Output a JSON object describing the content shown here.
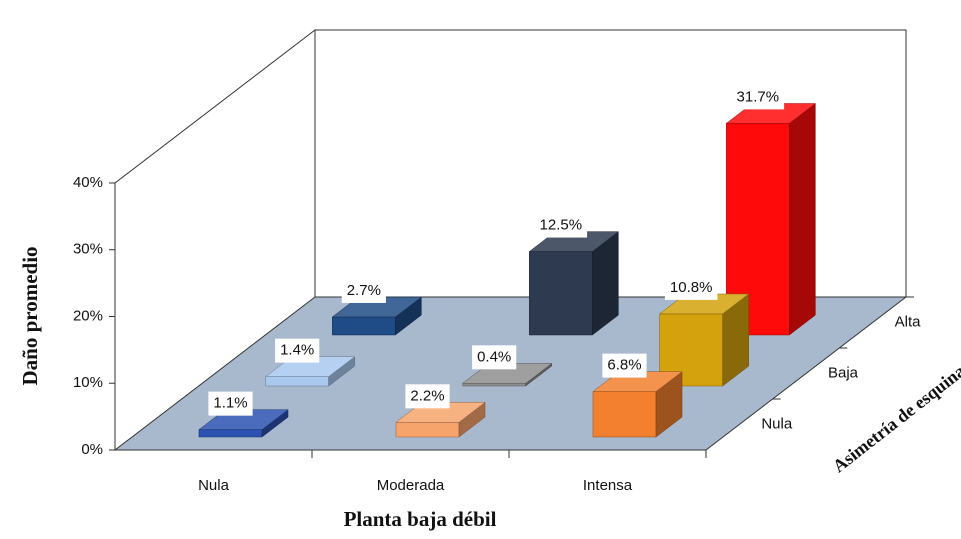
{
  "chart_data": {
    "type": "bar3d",
    "y_axis_label": "Daño promedio",
    "x_axis_label": "Planta baja débil",
    "depth_axis_label": "Asimetría de esquina",
    "categories": [
      "Nula",
      "Moderada",
      "Intensa"
    ],
    "series": [
      {
        "name": "Nula",
        "colors": [
          "#2b52b0",
          "#f6a46c",
          "#f2802e"
        ],
        "values": [
          1.1,
          2.2,
          6.8
        ],
        "value_labels": [
          "1.1%",
          "2.2%",
          "6.8%"
        ]
      },
      {
        "name": "Baja",
        "colors": [
          "#a8c8ee",
          "#8e8e8e",
          "#d4a20c"
        ],
        "values": [
          1.4,
          0.4,
          10.8
        ],
        "value_labels": [
          "1.4%",
          "0.4%",
          "10.8%"
        ]
      },
      {
        "name": "Alta",
        "colors": [
          "#1f4c86",
          "#2d3a50",
          "#ff0a0a"
        ],
        "values": [
          2.7,
          12.5,
          31.7
        ],
        "value_labels": [
          "2.7%",
          "12.5%",
          "31.7%"
        ]
      }
    ],
    "ylim": [
      0,
      40
    ],
    "yticks": [
      {
        "value": 0,
        "label": "0%"
      },
      {
        "value": 10,
        "label": "10%"
      },
      {
        "value": 20,
        "label": "20%"
      },
      {
        "value": 30,
        "label": "30%"
      },
      {
        "value": 40,
        "label": "40%"
      }
    ]
  }
}
